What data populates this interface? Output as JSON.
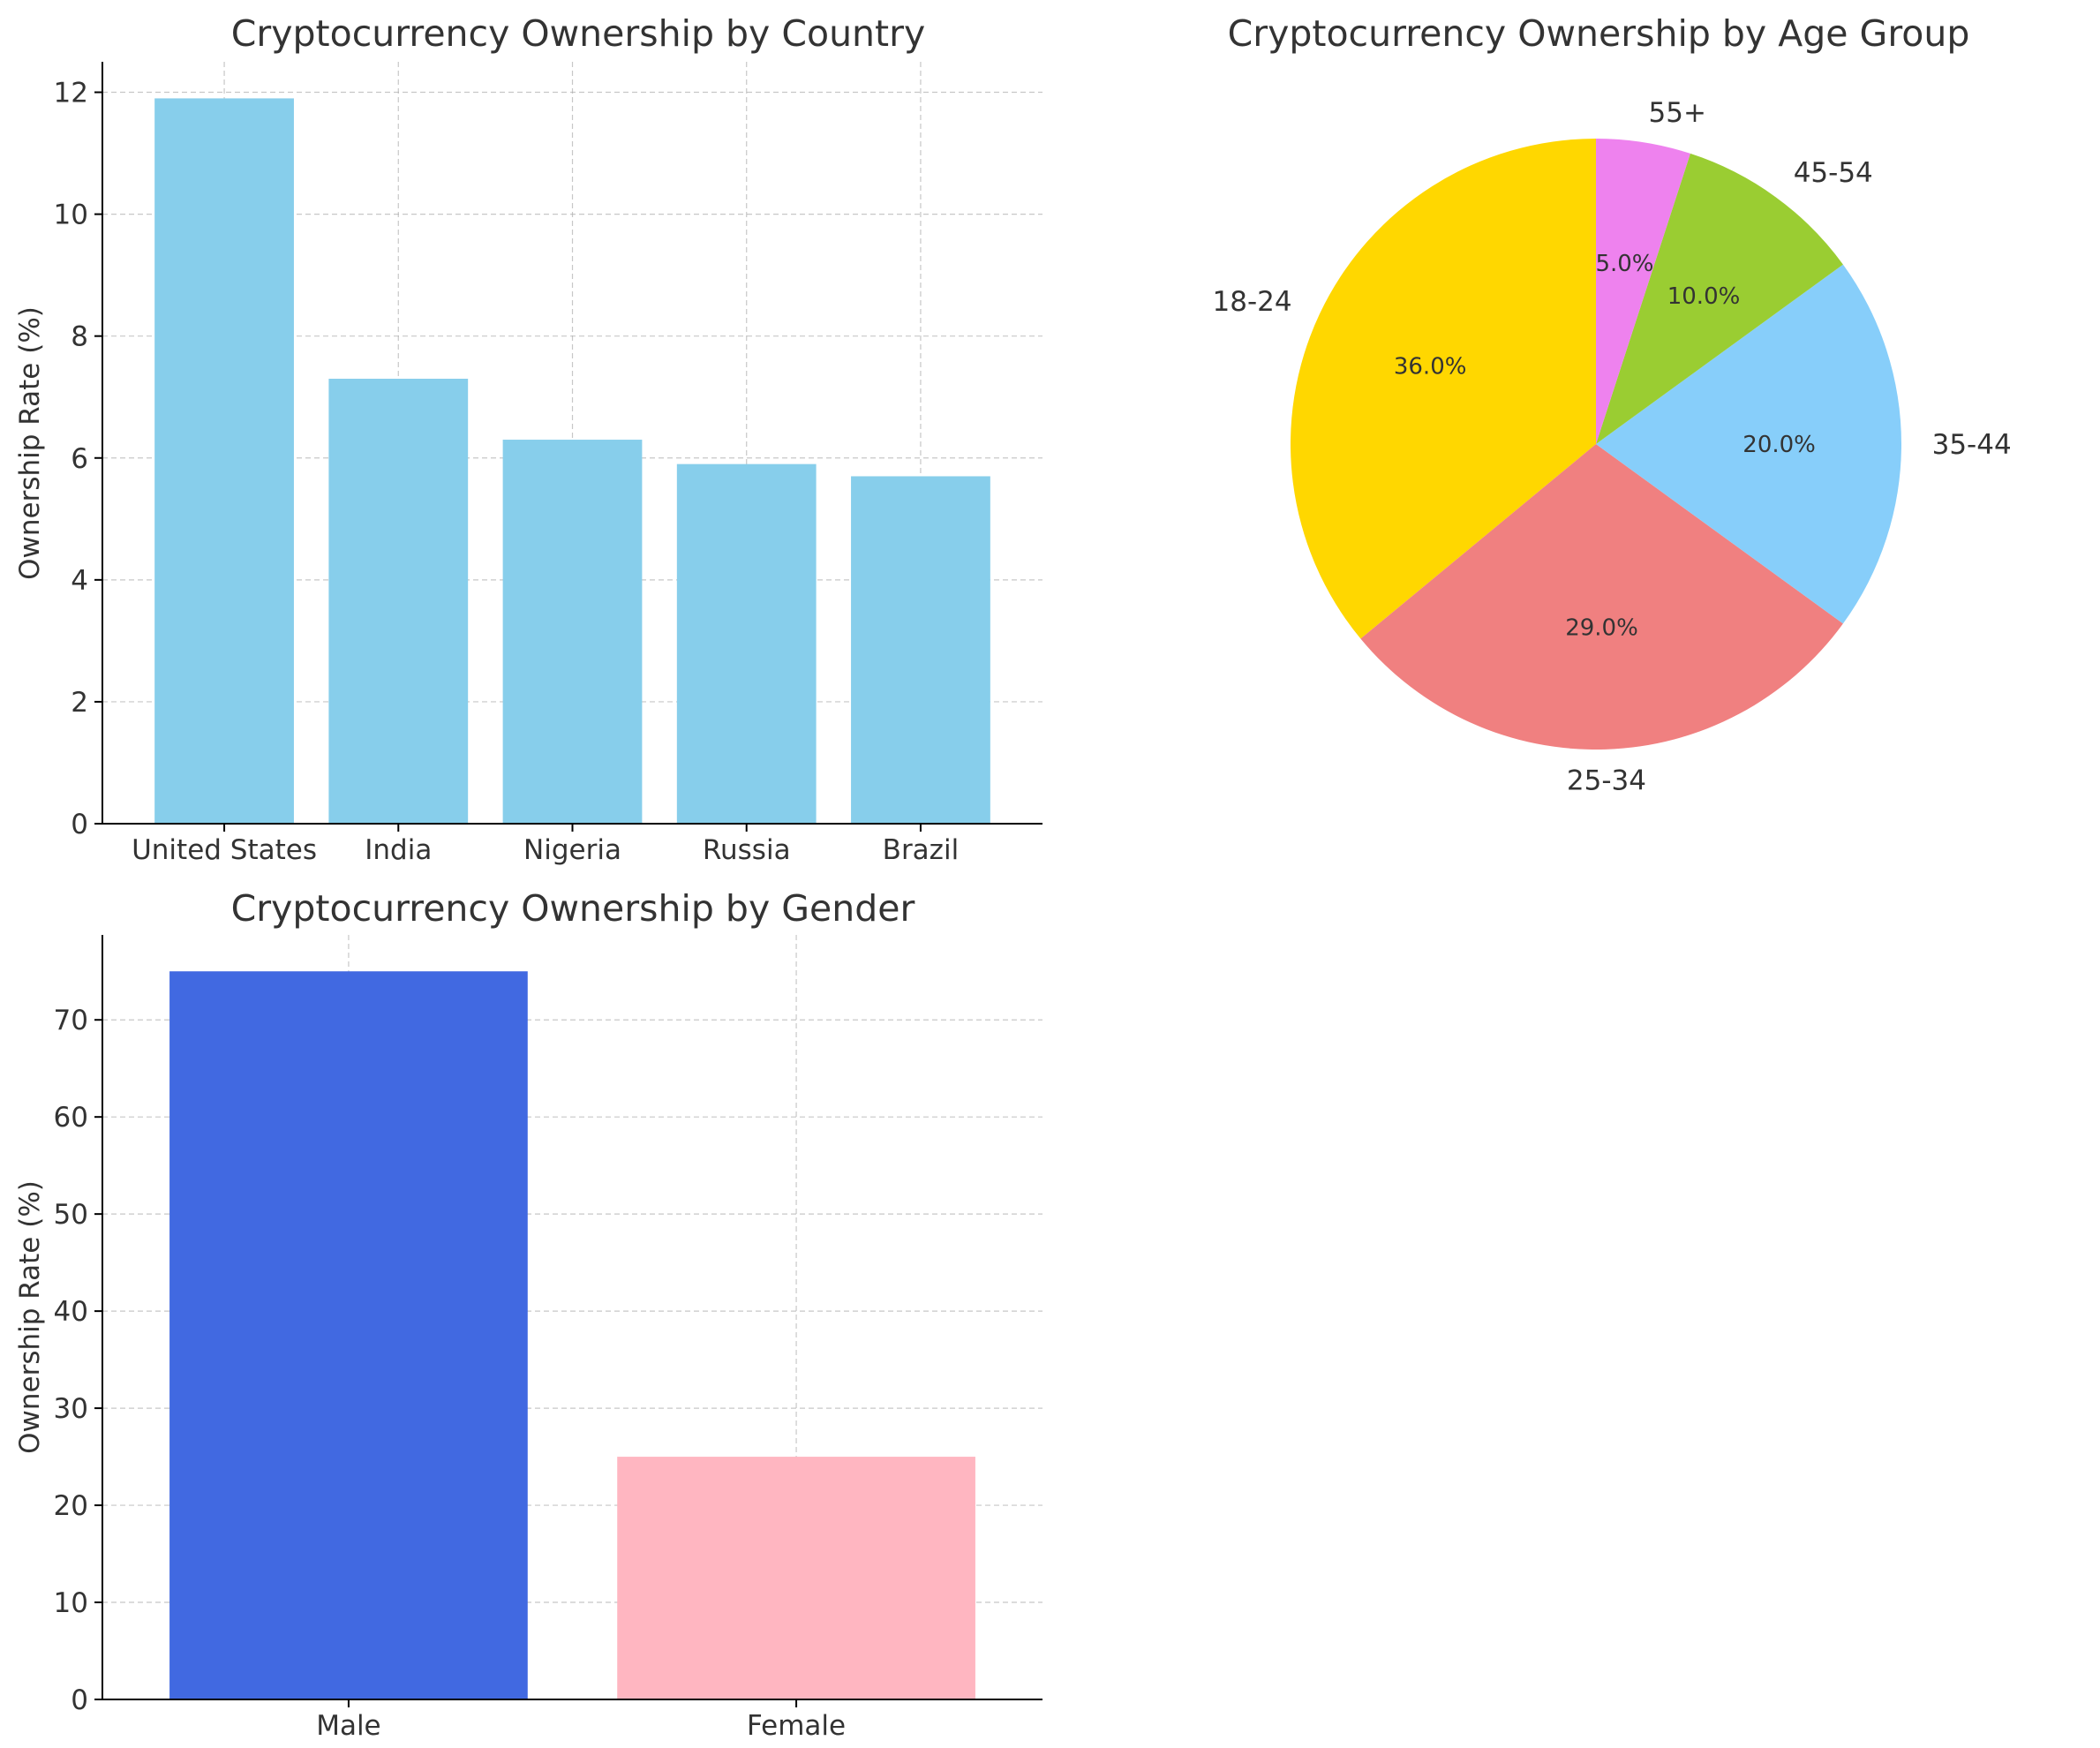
{
  "chart_data": [
    {
      "id": "country",
      "type": "bar",
      "title": "Cryptocurrency Ownership by Country",
      "xlabel": "",
      "ylabel": "Ownership Rate (%)",
      "categories": [
        "United States",
        "India",
        "Nigeria",
        "Russia",
        "Brazil"
      ],
      "values": [
        11.9,
        7.3,
        6.3,
        5.9,
        5.7
      ],
      "ylim": [
        0,
        12.5
      ],
      "yticks": [
        0,
        2,
        4,
        6,
        8,
        10,
        12
      ],
      "color": "#87CEEB",
      "grid": true
    },
    {
      "id": "age",
      "type": "pie",
      "title": "Cryptocurrency Ownership by Age Group",
      "labels": [
        "18-24",
        "25-34",
        "35-44",
        "45-54",
        "55+"
      ],
      "values": [
        36.0,
        29.0,
        20.0,
        10.0,
        5.0
      ],
      "value_labels": [
        "36.0%",
        "29.0%",
        "20.0%",
        "10.0%",
        "5.0%"
      ],
      "colors": [
        "#FFD700",
        "#F08080",
        "#87CEFA",
        "#9ACD32",
        "#EE82EE"
      ],
      "start_angle": 90,
      "direction": "counterclockwise"
    },
    {
      "id": "gender",
      "type": "bar",
      "title": "Cryptocurrency Ownership by Gender",
      "xlabel": "",
      "ylabel": "Ownership Rate (%)",
      "categories": [
        "Male",
        "Female"
      ],
      "values": [
        75,
        25
      ],
      "ylim": [
        0,
        78.75
      ],
      "yticks": [
        0,
        10,
        20,
        30,
        40,
        50,
        60,
        70
      ],
      "colors": [
        "#4169E1",
        "#FFB6C1"
      ],
      "grid": true
    }
  ]
}
